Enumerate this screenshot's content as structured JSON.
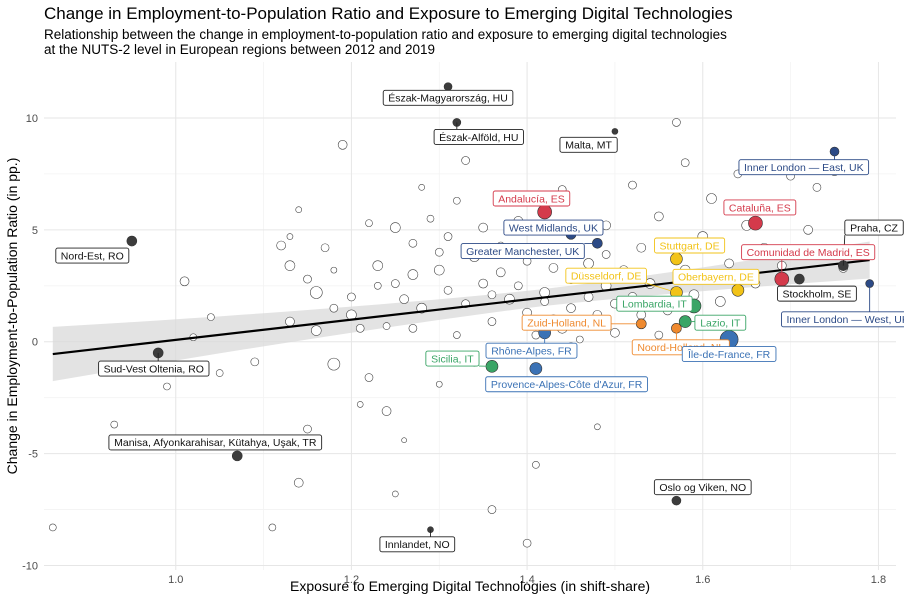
{
  "header": {
    "title": "Change in Employment-to-Population Ratio and Exposure to Emerging Digital Technologies",
    "subtitle_lines": [
      "Relationship between the change in employment-to-population ratio and exposure to emerging digital technologies",
      "at the NUTS-2 level in European regions between 2012 and 2019"
    ]
  },
  "colors": {
    "ES": "#d43a4b",
    "UK": "#2c4a86",
    "DE": "#f2c318",
    "NL": "#ef8a2f",
    "IT": "#3aa566",
    "FR": "#3b72b5",
    "other": "#3c3c3c",
    "background_points": "#ffffff",
    "ribbon": "#d9d9d9",
    "trend": "#000000"
  },
  "chart_data": {
    "type": "scatter",
    "xlabel": "Exposure to Emerging Digital Technologies (in shift-share)",
    "ylabel": "Change in Employment-to-Population Ratio (in pp.)",
    "xlim": [
      0.85,
      1.82
    ],
    "ylim": [
      -10.2,
      12.5
    ],
    "xticks": [
      "1.0",
      "1.2",
      "1.4",
      "1.6",
      "1.8"
    ],
    "yticks": [
      "-10",
      "-5",
      "0",
      "5",
      "10"
    ],
    "grid": true,
    "trend_line": {
      "x": [
        0.86,
        1.79
      ],
      "y": [
        -0.55,
        3.65
      ]
    },
    "highlighted": [
      {
        "label": "Észak-Magyarország, HU",
        "x": 1.31,
        "y": 11.4,
        "group": "other",
        "size": 4,
        "lx": 1.31,
        "ly": 10.9
      },
      {
        "label": "Észak-Alföld, HU",
        "x": 1.32,
        "y": 9.8,
        "group": "other",
        "size": 4,
        "lx": 1.345,
        "ly": 9.15
      },
      {
        "label": "Malta, MT",
        "x": 1.5,
        "y": 9.4,
        "group": "other",
        "size": 3,
        "lx": 1.47,
        "ly": 8.8
      },
      {
        "label": "Inner London — East, UK",
        "x": 1.75,
        "y": 8.5,
        "group": "UK",
        "size": 4.5,
        "lx": 1.715,
        "ly": 7.8
      },
      {
        "label": "Andalucía, ES",
        "x": 1.42,
        "y": 5.8,
        "group": "ES",
        "size": 7,
        "lx": 1.405,
        "ly": 6.4
      },
      {
        "label": "Cataluña, ES",
        "x": 1.66,
        "y": 5.3,
        "group": "ES",
        "size": 7,
        "lx": 1.665,
        "ly": 6
      },
      {
        "label": "West Midlands, UK",
        "x": 1.45,
        "y": 4.8,
        "group": "UK",
        "size": 5,
        "lx": 1.43,
        "ly": 5.1
      },
      {
        "label": "Praha, CZ",
        "x": 1.76,
        "y": 3.4,
        "group": "other",
        "size": 5,
        "lx": 1.795,
        "ly": 5.1
      },
      {
        "label": "Nord-Est, RO",
        "x": 0.95,
        "y": 4.5,
        "group": "other",
        "size": 5,
        "lx": 0.905,
        "ly": 3.85
      },
      {
        "label": "Greater Manchester, UK",
        "x": 1.48,
        "y": 4.4,
        "group": "UK",
        "size": 5,
        "lx": 1.395,
        "ly": 4.05
      },
      {
        "label": "Stuttgart, DE",
        "x": 1.57,
        "y": 3.7,
        "group": "DE",
        "size": 6,
        "lx": 1.585,
        "ly": 4.3
      },
      {
        "label": "Comunidad de Madrid, ES",
        "x": 1.69,
        "y": 2.8,
        "group": "ES",
        "size": 7,
        "lx": 1.72,
        "ly": 4
      },
      {
        "label": "Düsseldorf, DE",
        "x": 1.57,
        "y": 2.2,
        "group": "DE",
        "size": 6,
        "lx": 1.49,
        "ly": 2.95
      },
      {
        "label": "Oberbayern, DE",
        "x": 1.64,
        "y": 2.3,
        "group": "DE",
        "size": 6,
        "lx": 1.615,
        "ly": 2.9
      },
      {
        "label": "Stockholm, SE",
        "x": 1.71,
        "y": 2.8,
        "group": "other",
        "size": 5,
        "lx": 1.73,
        "ly": 2.15
      },
      {
        "label": "Lombardia, IT",
        "x": 1.59,
        "y": 1.6,
        "group": "IT",
        "size": 7,
        "lx": 1.545,
        "ly": 1.7
      },
      {
        "label": "Zuid-Holland, NL",
        "x": 1.53,
        "y": 0.8,
        "group": "NL",
        "size": 5,
        "lx": 1.445,
        "ly": 0.85
      },
      {
        "label": "Lazio, IT",
        "x": 1.58,
        "y": 0.9,
        "group": "IT",
        "size": 6,
        "lx": 1.62,
        "ly": 0.85
      },
      {
        "label": "Inner London — West, UK",
        "x": 1.79,
        "y": 2.6,
        "group": "UK",
        "size": 4,
        "lx": 1.765,
        "ly": 1
      },
      {
        "label": "Rhône-Alpes, FR",
        "x": 1.42,
        "y": 0.4,
        "group": "FR",
        "size": 6,
        "lx": 1.405,
        "ly": -0.4
      },
      {
        "label": "Noord-Holland, NL",
        "x": 1.57,
        "y": 0.6,
        "group": "NL",
        "size": 5,
        "lx": 1.575,
        "ly": -0.25
      },
      {
        "label": "Île-de-France, FR",
        "x": 1.63,
        "y": 0.1,
        "group": "FR",
        "size": 9,
        "lx": 1.63,
        "ly": -0.55
      },
      {
        "label": "Sud-Vest Oltenia, RO",
        "x": 0.98,
        "y": -0.5,
        "group": "other",
        "size": 5,
        "lx": 0.975,
        "ly": -1.2
      },
      {
        "label": "Sicilia, IT",
        "x": 1.36,
        "y": -1.1,
        "group": "IT",
        "size": 6,
        "lx": 1.315,
        "ly": -0.75
      },
      {
        "label": "Provence-Alpes-Côte d'Azur, FR",
        "x": 1.41,
        "y": -1.2,
        "group": "FR",
        "size": 6,
        "lx": 1.445,
        "ly": -1.9
      },
      {
        "label": "Manisa, Afyonkarahisar, Kütahya, Uşak, TR",
        "x": 1.07,
        "y": -5.1,
        "group": "other",
        "size": 5,
        "lx": 1.045,
        "ly": -4.5
      },
      {
        "label": "Oslo og Viken, NO",
        "x": 1.57,
        "y": -7.1,
        "group": "other",
        "size": 4.5,
        "lx": 1.6,
        "ly": -6.5
      },
      {
        "label": "Innlandet, NO",
        "x": 1.29,
        "y": -8.4,
        "group": "other",
        "size": 3,
        "lx": 1.275,
        "ly": -9.05
      }
    ],
    "background_points": [
      [
        0.86,
        -8.3,
        3.5
      ],
      [
        0.93,
        -3.7,
        3.5
      ],
      [
        0.99,
        -2,
        3.5
      ],
      [
        1.01,
        2.7,
        4.5
      ],
      [
        1.02,
        0.2,
        3.5
      ],
      [
        1.04,
        1.1,
        3.5
      ],
      [
        1.05,
        -1.4,
        3.5
      ],
      [
        1.09,
        -0.9,
        4
      ],
      [
        1.1,
        -4.6,
        4
      ],
      [
        1.11,
        -8.3,
        3.5
      ],
      [
        1.12,
        4.3,
        4.5
      ],
      [
        1.13,
        4.7,
        3
      ],
      [
        1.13,
        3.4,
        5
      ],
      [
        1.13,
        0.9,
        4.5
      ],
      [
        1.14,
        -6.3,
        4.5
      ],
      [
        1.14,
        5.9,
        3
      ],
      [
        1.15,
        -3.9,
        4
      ],
      [
        1.16,
        2.2,
        6
      ],
      [
        1.16,
        0.5,
        5
      ],
      [
        1.17,
        4.2,
        4
      ],
      [
        1.18,
        3.2,
        3
      ],
      [
        1.18,
        -1,
        6
      ],
      [
        1.19,
        8.8,
        4.5
      ],
      [
        1.2,
        2,
        4
      ],
      [
        1.2,
        1.2,
        5
      ],
      [
        1.21,
        -2.8,
        3
      ],
      [
        1.22,
        5.3,
        3.5
      ],
      [
        1.22,
        -1.6,
        4
      ],
      [
        1.23,
        3.4,
        5
      ],
      [
        1.23,
        2.5,
        3.5
      ],
      [
        1.24,
        0.7,
        3.5
      ],
      [
        1.24,
        -3.1,
        4.5
      ],
      [
        1.25,
        5.1,
        5
      ],
      [
        1.25,
        -6.8,
        3
      ],
      [
        1.26,
        1.9,
        4.5
      ],
      [
        1.26,
        -4.4,
        2.5
      ],
      [
        1.27,
        4.4,
        4
      ],
      [
        1.27,
        3,
        5
      ],
      [
        1.27,
        0.6,
        4
      ],
      [
        1.28,
        6.9,
        3
      ],
      [
        1.28,
        1.5,
        5
      ],
      [
        1.29,
        5.5,
        3.5
      ],
      [
        1.3,
        3.2,
        5
      ],
      [
        1.3,
        -1.9,
        3
      ],
      [
        1.31,
        2.3,
        4
      ],
      [
        1.31,
        4.7,
        4
      ],
      [
        1.32,
        0.3,
        3.5
      ],
      [
        1.32,
        6.3,
        3.5
      ],
      [
        1.33,
        1.7,
        4
      ],
      [
        1.33,
        8.1,
        4
      ],
      [
        1.34,
        3.8,
        5
      ],
      [
        1.34,
        -0.9,
        4.5
      ],
      [
        1.35,
        5.1,
        4.5
      ],
      [
        1.35,
        2.6,
        4.5
      ],
      [
        1.36,
        0.9,
        4
      ],
      [
        1.36,
        -7.5,
        4
      ],
      [
        1.37,
        4.3,
        3.5
      ],
      [
        1.37,
        3.1,
        4.5
      ],
      [
        1.38,
        1.9,
        5
      ],
      [
        1.38,
        -0.4,
        3.5
      ],
      [
        1.39,
        5.4,
        4.5
      ],
      [
        1.39,
        2.5,
        4
      ],
      [
        1.4,
        -9,
        4
      ],
      [
        1.4,
        3.6,
        4
      ],
      [
        1.4,
        1.3,
        4.5
      ],
      [
        1.41,
        0.3,
        4
      ],
      [
        1.41,
        -5.5,
        3.5
      ],
      [
        1.42,
        4.1,
        4.5
      ],
      [
        1.42,
        2.2,
        5
      ],
      [
        1.43,
        1,
        4.5
      ],
      [
        1.43,
        3.3,
        4.5
      ],
      [
        1.44,
        0.6,
        5
      ],
      [
        1.44,
        6.8,
        4
      ],
      [
        1.45,
        2.8,
        4.5
      ],
      [
        1.45,
        1.5,
        4.5
      ],
      [
        1.46,
        4.1,
        4
      ],
      [
        1.46,
        0.1,
        3.5
      ],
      [
        1.47,
        2,
        4.5
      ],
      [
        1.47,
        3.5,
        5
      ],
      [
        1.48,
        1.2,
        4.5
      ],
      [
        1.48,
        -3.8,
        3
      ],
      [
        1.49,
        5.2,
        4.5
      ],
      [
        1.49,
        2.5,
        5
      ],
      [
        1.5,
        1.7,
        4.5
      ],
      [
        1.5,
        0.4,
        4.5
      ],
      [
        1.51,
        3.2,
        4.5
      ],
      [
        1.52,
        7,
        4
      ],
      [
        1.52,
        2,
        4.5
      ],
      [
        1.53,
        1.2,
        4.5
      ],
      [
        1.53,
        4.2,
        4.5
      ],
      [
        1.54,
        2.6,
        5
      ],
      [
        1.55,
        0.3,
        4
      ],
      [
        1.55,
        5.6,
        4.5
      ],
      [
        1.56,
        1.4,
        4.5
      ],
      [
        1.57,
        9.8,
        4
      ],
      [
        1.58,
        3.2,
        5
      ],
      [
        1.58,
        8,
        4
      ],
      [
        1.59,
        2.1,
        5
      ],
      [
        1.6,
        4.7,
        5
      ],
      [
        1.61,
        6.4,
        5
      ],
      [
        1.62,
        1.8,
        5
      ],
      [
        1.63,
        3.5,
        4.5
      ],
      [
        1.64,
        7.5,
        4
      ],
      [
        1.65,
        5.2,
        5
      ],
      [
        1.66,
        2.6,
        4.5
      ],
      [
        1.67,
        4.2,
        4.5
      ],
      [
        1.68,
        6,
        5
      ],
      [
        1.69,
        3.4,
        4.5
      ],
      [
        1.7,
        7.4,
        4
      ],
      [
        1.71,
        2.1,
        4.5
      ],
      [
        1.72,
        5,
        4.5
      ],
      [
        1.73,
        6.9,
        4
      ],
      [
        1.75,
        7.6,
        4
      ],
      [
        1.76,
        3.3,
        4.5
      ],
      [
        1.42,
        1.8,
        4
      ],
      [
        1.45,
        -0.2,
        3.5
      ],
      [
        1.49,
        3.9,
        4
      ],
      [
        1.53,
        -0.2,
        3.5
      ],
      [
        1.36,
        2.1,
        4
      ],
      [
        1.3,
        4,
        4
      ],
      [
        1.25,
        2.6,
        4
      ],
      [
        1.21,
        0.6,
        4
      ],
      [
        1.18,
        1.5,
        4
      ],
      [
        1.15,
        2.8,
        4
      ],
      [
        1.47,
        0.8,
        4
      ],
      [
        1.51,
        1.6,
        4
      ]
    ]
  }
}
